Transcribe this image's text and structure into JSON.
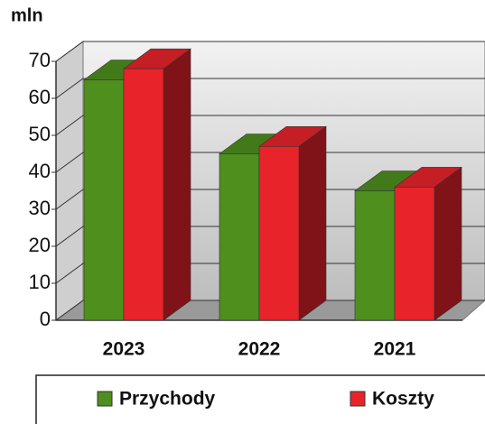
{
  "chart_data": {
    "type": "bar3d",
    "y_axis_label": "mln",
    "categories": [
      "2023",
      "2022",
      "2021"
    ],
    "series": [
      {
        "name": "Przychody",
        "color": "#4e8f1e",
        "values": [
          65,
          45,
          35
        ]
      },
      {
        "name": "Koszty",
        "color": "#e8232a",
        "values": [
          68,
          47,
          36
        ]
      }
    ],
    "ylim": [
      0,
      70
    ],
    "yticks": [
      0,
      10,
      20,
      30,
      40,
      50,
      60,
      70
    ],
    "grid": true,
    "legend": "bottom"
  }
}
